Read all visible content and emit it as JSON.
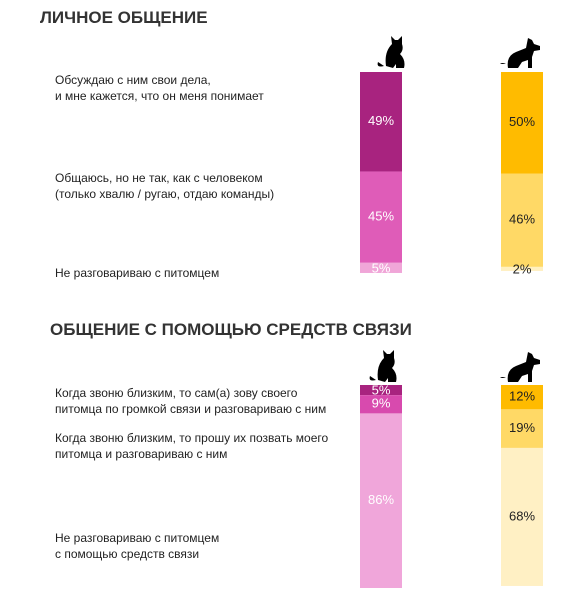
{
  "chart_data": [
    {
      "type": "bar",
      "stacked": true,
      "title": "ЛИЧНОЕ ОБЩЕНИЕ",
      "categories": [
        null,
        null
      ],
      "series": [
        {
          "name": "Обсуждаю с ним свои дела,\nи мне кажется, что он меня понимает",
          "colors": [
            "#a8237f",
            "#ffbb00"
          ],
          "values": [
            49,
            50
          ],
          "value_labels": [
            "49%",
            "50%"
          ]
        },
        {
          "name": "Общаюсь, но не так, как с человеком\n(только хвалю / ругаю, отдаю команды)",
          "colors": [
            "#df5cb8",
            "#ffd966"
          ],
          "values": [
            45,
            46
          ],
          "value_labels": [
            "45%",
            "46%"
          ]
        },
        {
          "name": "Не разговариваю с питомцем",
          "colors": [
            "#f0a6d8",
            "#fff0c0"
          ],
          "values": [
            5,
            2
          ],
          "value_labels": [
            "5%",
            "2%"
          ]
        }
      ]
    },
    {
      "type": "bar",
      "stacked": true,
      "title": "ОБЩЕНИЕ С ПОМОЩЬЮ СРЕДСТВ СВЯЗИ",
      "categories": [
        null,
        null
      ],
      "series": [
        {
          "name": "Когда звоню близким, то сам(а) зову своего\nпитомца по громкой связи и разговариваю с ним",
          "colors": [
            "#a8237f",
            "#ffbb00"
          ],
          "values": [
            5,
            12
          ],
          "value_labels": [
            "5%",
            "12%"
          ]
        },
        {
          "name": "Когда звоню близким, то прошу их позвать моего\nпитомца и разговариваю с ним",
          "colors": [
            "#d84aae",
            "#ffd966"
          ],
          "values": [
            9,
            19
          ],
          "value_labels": [
            "9%",
            "19%"
          ]
        },
        {
          "name": "Не разговариваю с питомцем\nс помощью средств связи",
          "colors": [
            "#f0a6da",
            "#fff0c4"
          ],
          "values": [
            86,
            68
          ],
          "value_labels": [
            "86%",
            "68%"
          ]
        }
      ]
    }
  ]
}
